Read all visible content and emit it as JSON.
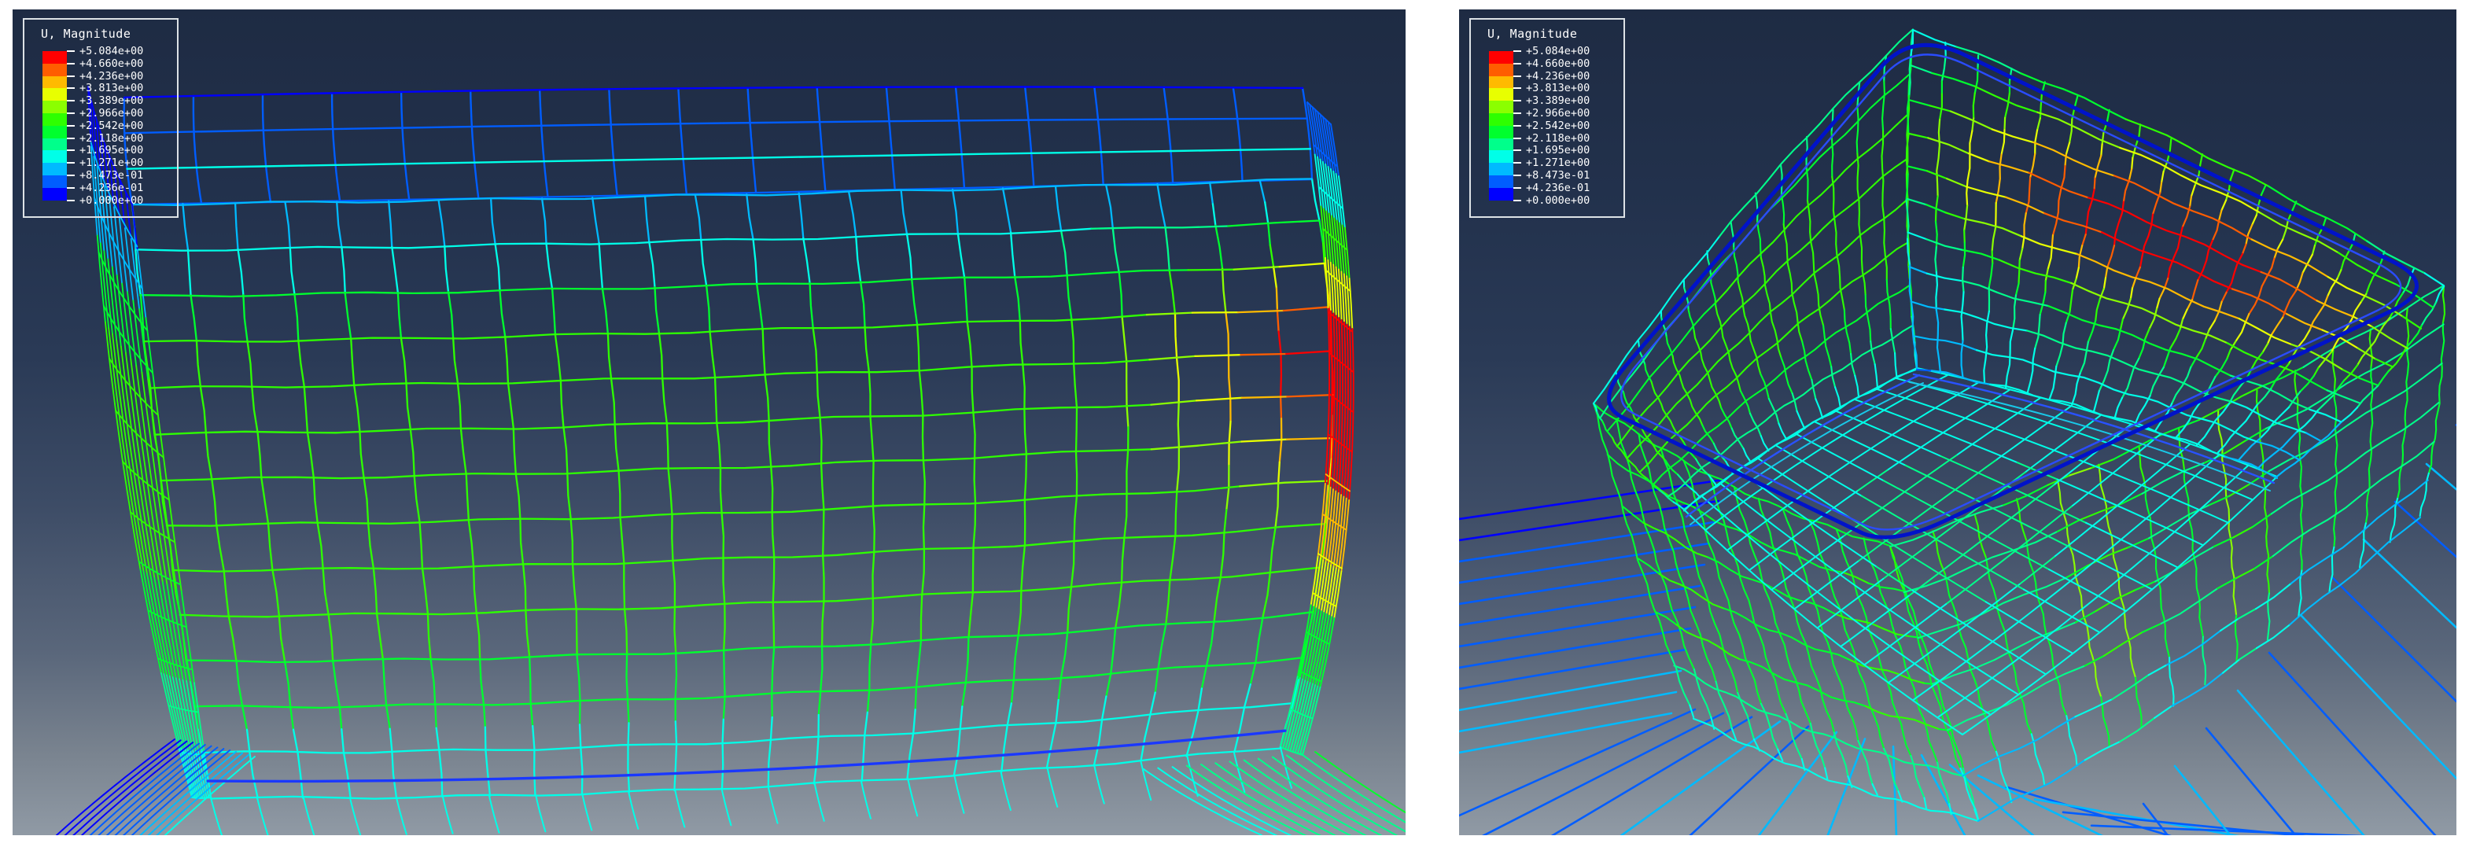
{
  "field": "U, Magnitude",
  "scale": {
    "min": 0.0,
    "max": 5.084,
    "intervals": 12,
    "tick_labels": [
      "+5.084e+00",
      "+4.660e+00",
      "+4.236e+00",
      "+3.813e+00",
      "+3.389e+00",
      "+2.966e+00",
      "+2.542e+00",
      "+2.118e+00",
      "+1.695e+00",
      "+1.271e+00",
      "+8.473e-01",
      "+4.236e-01",
      "+0.000e+00"
    ]
  },
  "panels": [
    {
      "name": "side-view",
      "legend": {
        "title": "U, Magnitude",
        "values": [
          "+5.084e+00",
          "+4.660e+00",
          "+4.236e+00",
          "+3.813e+00",
          "+3.389e+00",
          "+2.966e+00",
          "+2.542e+00",
          "+2.118e+00",
          "+1.695e+00",
          "+1.271e+00",
          "+8.473e-01",
          "+4.236e-01",
          "+0.000e+00"
        ]
      }
    },
    {
      "name": "isometric-view",
      "legend": {
        "title": "U, Magnitude",
        "values": [
          "+5.084e+00",
          "+4.660e+00",
          "+4.236e+00",
          "+3.813e+00",
          "+3.389e+00",
          "+2.966e+00",
          "+2.542e+00",
          "+2.118e+00",
          "+1.695e+00",
          "+1.271e+00",
          "+8.473e-01",
          "+4.236e-01",
          "+0.000e+00"
        ]
      }
    }
  ],
  "colors": {
    "bands_high_to_low": [
      "#ff0000",
      "#ff5d00",
      "#ffba00",
      "#e8ff00",
      "#8bff00",
      "#2eff00",
      "#00ff2e",
      "#00ff8b",
      "#00ffe8",
      "#00baff",
      "#005dff",
      "#0000ff"
    ],
    "viewport_bg_top": "#1e2b43",
    "viewport_bg_bottom": "#909aa5",
    "rim_outline": "#0013c9",
    "rim_inner": "#2a4cff",
    "bottom_edge_line": "#1a38ff",
    "legend_border": "#dde2e6",
    "legend_text": "#ffffff",
    "page_background": "#ffffff"
  },
  "chart_data": {
    "type": "heatmap",
    "title": "U, Magnitude",
    "legend_position": "top-left",
    "value_range": [
      0.0,
      5.084
    ],
    "contour_intervals": 12,
    "contour_levels": [
      0.0,
      0.4236,
      0.8473,
      1.271,
      1.695,
      2.118,
      2.542,
      2.966,
      3.389,
      3.813,
      4.236,
      4.66,
      5.084
    ],
    "views": [
      {
        "view": "side",
        "max_region": "upper right wall edge (red ~5.08)",
        "min_region": "top rim and base flange (blue ~0)"
      },
      {
        "view": "isometric-top",
        "max_region": "upper far-right inner wall (red ~5.08)",
        "min_region": "rim outline and radiating base flange lines (blue ~0)"
      }
    ]
  }
}
